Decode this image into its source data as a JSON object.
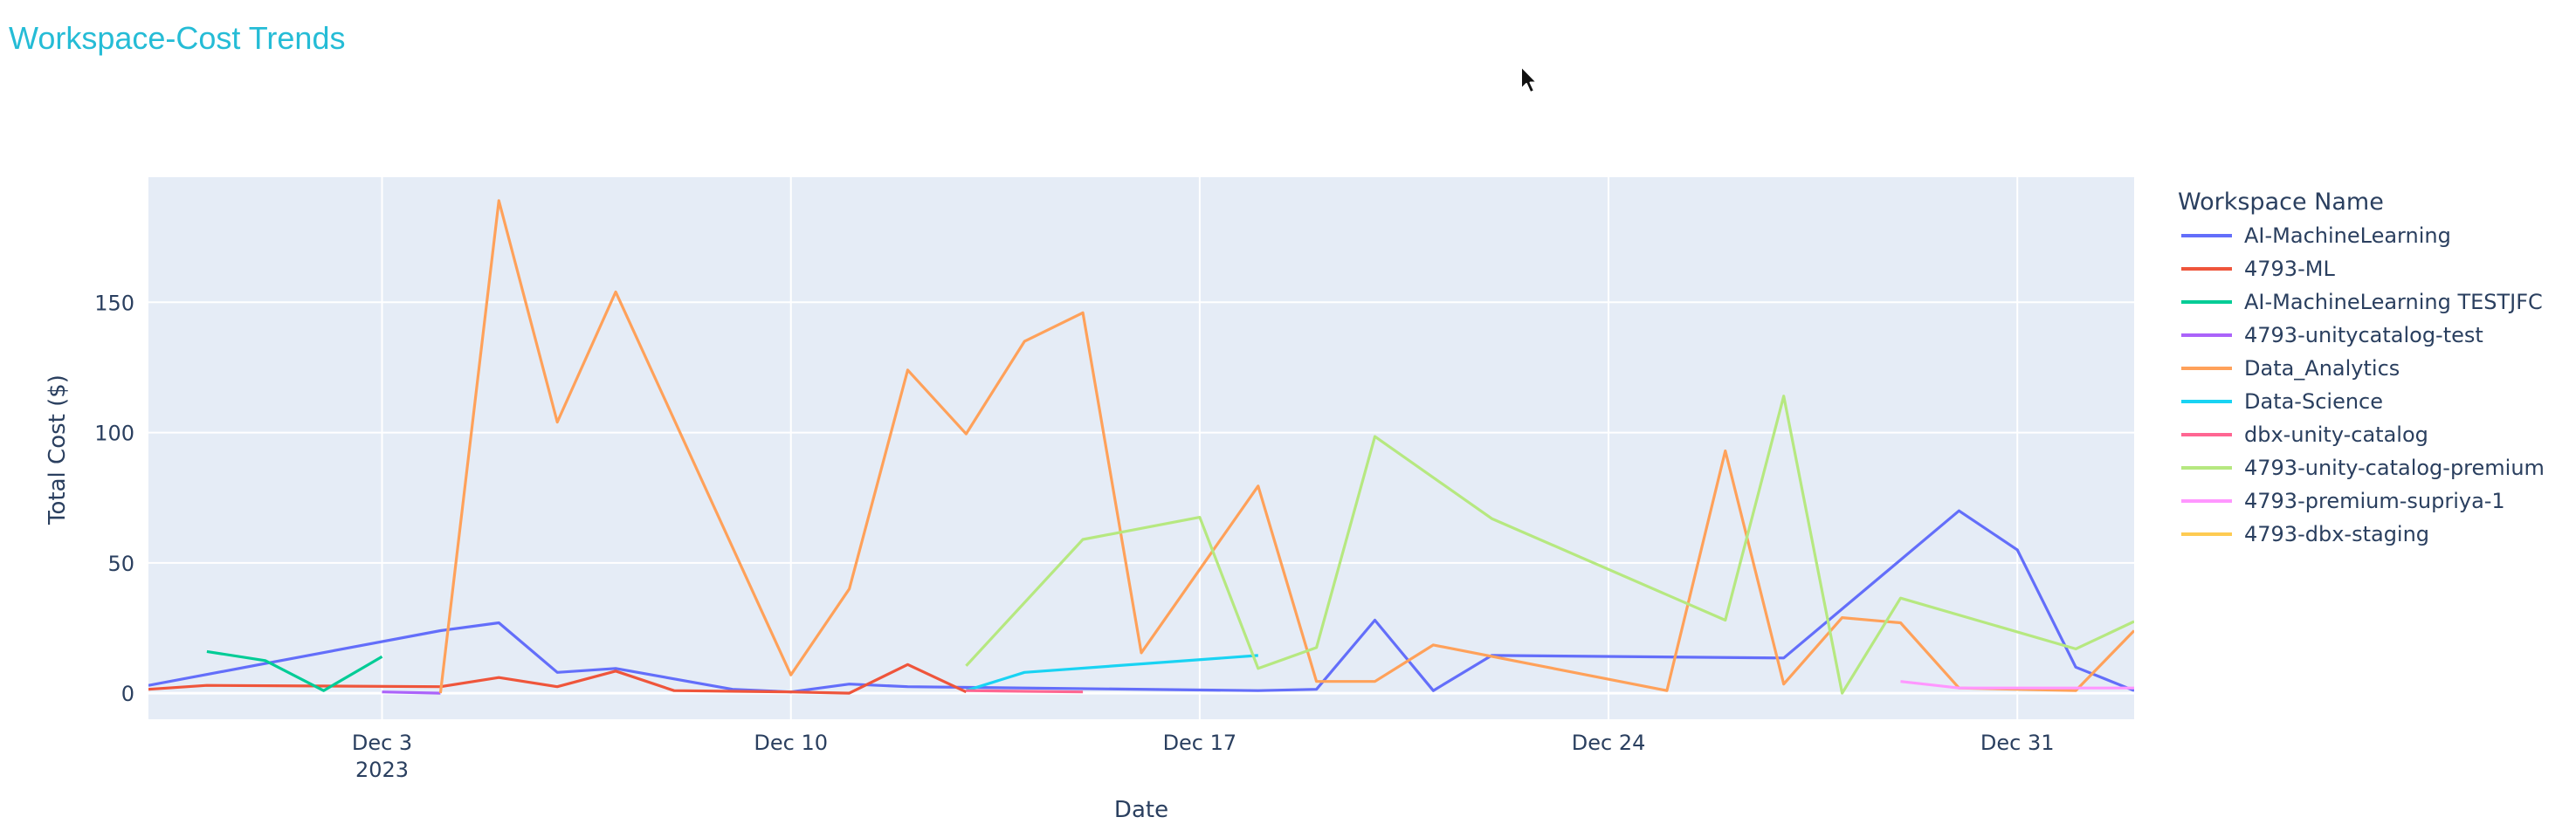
{
  "chart_data": {
    "type": "line",
    "title": "Workspace-Cost Trends",
    "xlabel": "Date",
    "ylabel": "Total Cost ($)",
    "legend_title": "Workspace Name",
    "legend_position": "right",
    "grid": true,
    "xlim": [
      "2023-11-29",
      "2024-01-02"
    ],
    "ylim": [
      -10,
      198
    ],
    "x_ticks": [
      {
        "date": "2023-12-03",
        "label": "Dec 3",
        "sublabel": "2023"
      },
      {
        "date": "2023-12-10",
        "label": "Dec 10"
      },
      {
        "date": "2023-12-17",
        "label": "Dec 17"
      },
      {
        "date": "2023-12-24",
        "label": "Dec 24"
      },
      {
        "date": "2023-12-31",
        "label": "Dec 31"
      }
    ],
    "y_ticks": [
      0,
      50,
      100,
      150
    ],
    "series": [
      {
        "name": "AI-MachineLearning",
        "color": "#636efa",
        "points": [
          [
            "2023-11-29",
            3
          ],
          [
            "2023-12-04",
            24
          ],
          [
            "2023-12-05",
            27
          ],
          [
            "2023-12-06",
            8
          ],
          [
            "2023-12-07",
            9.5
          ],
          [
            "2023-12-09",
            1.5
          ],
          [
            "2023-12-10",
            0.5
          ],
          [
            "2023-12-11",
            3.5
          ],
          [
            "2023-12-12",
            2.5
          ],
          [
            "2023-12-18",
            1
          ],
          [
            "2023-12-19",
            1.5
          ],
          [
            "2023-12-20",
            28
          ],
          [
            "2023-12-21",
            1
          ],
          [
            "2023-12-22",
            14.5
          ],
          [
            "2023-12-27",
            13.5
          ],
          [
            "2023-12-30",
            70
          ],
          [
            "2023-12-31",
            55
          ],
          [
            "2024-01-01",
            10
          ],
          [
            "2024-01-02",
            1
          ]
        ]
      },
      {
        "name": "4793-ML",
        "color": "#ef553b",
        "points": [
          [
            "2023-11-29",
            1.5
          ],
          [
            "2023-11-30",
            3
          ],
          [
            "2023-12-04",
            2.5
          ],
          [
            "2023-12-05",
            6
          ],
          [
            "2023-12-06",
            2.5
          ],
          [
            "2023-12-07",
            8.5
          ],
          [
            "2023-12-08",
            1
          ],
          [
            "2023-12-10",
            0.5
          ],
          [
            "2023-12-11",
            0
          ],
          [
            "2023-12-12",
            11
          ],
          [
            "2023-12-13",
            0.5
          ]
        ]
      },
      {
        "name": "AI-MachineLearning TESTJFC",
        "color": "#00cc96",
        "points": [
          [
            "2023-11-30",
            16
          ],
          [
            "2023-12-01",
            12.5
          ],
          [
            "2023-12-02",
            1
          ],
          [
            "2023-12-03",
            14
          ]
        ]
      },
      {
        "name": "4793-unitycatalog-test",
        "color": "#ab63fa",
        "points": [
          [
            "2023-12-03",
            0.5
          ],
          [
            "2023-12-04",
            0
          ]
        ]
      },
      {
        "name": "Data_Analytics",
        "color": "#ffa15a",
        "points": [
          [
            "2023-12-04",
            0
          ],
          [
            "2023-12-05",
            189
          ],
          [
            "2023-12-06",
            104
          ],
          [
            "2023-12-07",
            154
          ],
          [
            "2023-12-10",
            7
          ],
          [
            "2023-12-11",
            40
          ],
          [
            "2023-12-12",
            124
          ],
          [
            "2023-12-13",
            99.5
          ],
          [
            "2023-12-14",
            135
          ],
          [
            "2023-12-15",
            146
          ],
          [
            "2023-12-16",
            15.5
          ],
          [
            "2023-12-18",
            79.5
          ],
          [
            "2023-12-19",
            4.5
          ],
          [
            "2023-12-20",
            4.5
          ],
          [
            "2023-12-21",
            18.5
          ],
          [
            "2023-12-25",
            1
          ],
          [
            "2023-12-26",
            93
          ],
          [
            "2023-12-27",
            3.5
          ],
          [
            "2023-12-28",
            29
          ],
          [
            "2023-12-29",
            27
          ],
          [
            "2023-12-30",
            2
          ],
          [
            "2024-01-01",
            1
          ],
          [
            "2024-01-02",
            24
          ]
        ]
      },
      {
        "name": "Data-Science",
        "color": "#19d3f3",
        "points": [
          [
            "2023-12-13",
            1
          ],
          [
            "2023-12-14",
            8
          ],
          [
            "2023-12-18",
            14.5
          ]
        ]
      },
      {
        "name": "dbx-unity-catalog",
        "color": "#ff6692",
        "points": [
          [
            "2023-12-13",
            1
          ],
          [
            "2023-12-15",
            0.5
          ]
        ]
      },
      {
        "name": "4793-unity-catalog-premium",
        "color": "#b6e880",
        "points": [
          [
            "2023-12-13",
            10.5
          ],
          [
            "2023-12-15",
            59
          ],
          [
            "2023-12-17",
            67.5
          ],
          [
            "2023-12-18",
            9.5
          ],
          [
            "2023-12-19",
            17.5
          ],
          [
            "2023-12-20",
            98.5
          ],
          [
            "2023-12-22",
            67
          ],
          [
            "2023-12-26",
            28
          ],
          [
            "2023-12-27",
            114
          ],
          [
            "2023-12-28",
            0
          ],
          [
            "2023-12-29",
            36.5
          ],
          [
            "2024-01-01",
            17
          ],
          [
            "2024-01-02",
            27.5
          ]
        ]
      },
      {
        "name": "4793-premium-supriya-1",
        "color": "#ff97ff",
        "points": [
          [
            "2023-12-29",
            4.5
          ],
          [
            "2023-12-30",
            2
          ],
          [
            "2024-01-02",
            2
          ]
        ]
      },
      {
        "name": "4793-dbx-staging",
        "color": "#fecb52",
        "points": []
      }
    ]
  },
  "cursor": {
    "name": "mouse-pointer-icon"
  }
}
